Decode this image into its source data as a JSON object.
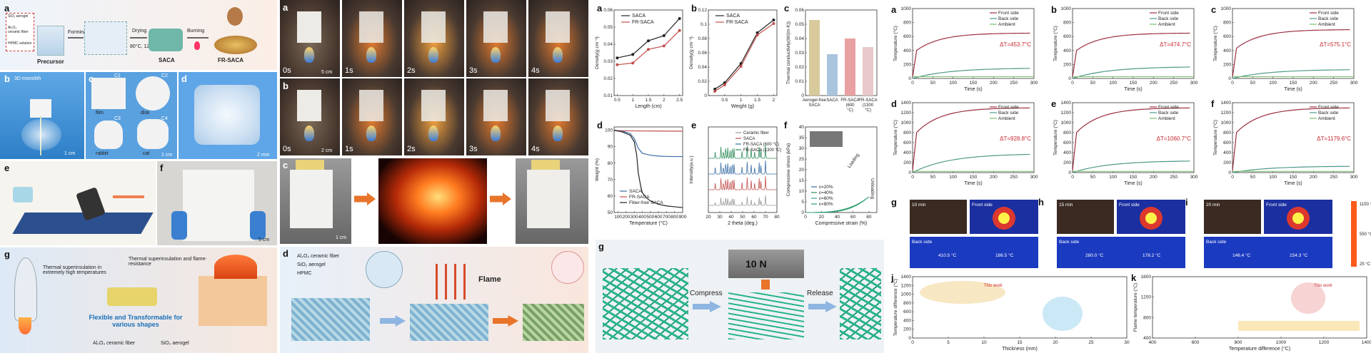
{
  "fig1": {
    "a": {
      "label": "a",
      "inset_lines": [
        "SiO₂ aerogel",
        "Al₂O₃",
        "ceramic fiber",
        "HPMC solution"
      ],
      "precursor": "Precursor",
      "forming": "Forming",
      "drying": "Drying",
      "dry_cond": "80°C, 12h",
      "burning": "Burning",
      "saca": "SACA",
      "frsaca": "FR-SACA"
    },
    "b": {
      "label": "b",
      "title": "3D monolith",
      "scale": "1 cm"
    },
    "c": {
      "label": "c",
      "items": [
        {
          "tag": "C1",
          "name": "film"
        },
        {
          "tag": "C2",
          "name": "disk"
        },
        {
          "tag": "C3",
          "name": "rabbit"
        },
        {
          "tag": "C4",
          "name": "cat"
        }
      ],
      "scale": "1 cm"
    },
    "d": {
      "label": "d",
      "scale": "2 mm"
    },
    "e": {
      "label": "e"
    },
    "f": {
      "label": "f",
      "scale": "5 cm"
    },
    "g": {
      "label": "g",
      "text1": "Thermal superinsulation in extremely high temperatures",
      "text2": "Thermal superinsulation and flame-resistance",
      "text3": "Flexible and Transformable for various shapes",
      "legend1": "Al₂O₃ ceramic fiber",
      "legend2": "SiO₂ aerogel"
    }
  },
  "fig2": {
    "a": {
      "label": "a",
      "times": [
        "0s",
        "1s",
        "2s",
        "3s",
        "4s"
      ],
      "scale": "5 cm"
    },
    "b": {
      "label": "b",
      "times": [
        "0s",
        "1s",
        "2s",
        "3s",
        "4s"
      ],
      "scale": "2 cm"
    },
    "c": {
      "label": "c",
      "scale": "1 cm"
    },
    "d": {
      "label": "d",
      "legend": [
        "Al₂O₃ ceramic fiber",
        "SiO₂ aerogel",
        "HPMC"
      ],
      "flame": "Flame"
    }
  },
  "fig3": {
    "a": {
      "label": "a"
    },
    "b": {
      "label": "b"
    },
    "c": {
      "label": "c"
    },
    "d": {
      "label": "d"
    },
    "e": {
      "label": "e"
    },
    "f": {
      "label": "f"
    },
    "g": {
      "label": "g",
      "compress": "Compress",
      "force": "10 N",
      "release": "Release"
    }
  },
  "fig4": {
    "labels": [
      "a",
      "b",
      "c",
      "d",
      "e",
      "f",
      "g",
      "h",
      "i",
      "j",
      "k"
    ],
    "dT": [
      "ΔT=453.7°C",
      "ΔT=474.7°C",
      "ΔT=575.1°C",
      "ΔT=928.8°C",
      "ΔT=1060.7°C",
      "ΔT=1179.6°C"
    ],
    "legend": [
      "Front side",
      "Back side",
      "Ambient"
    ],
    "xlabel": "Time (s)",
    "ylabel": "Temperature (°C)",
    "ir_times": [
      "10 min",
      "15 min",
      "20 min"
    ],
    "ir_front": "Front side",
    "ir_back": "Back side",
    "ir_back_vals": [
      "410.5 °C",
      "186.5 °C",
      "280.0 °C",
      "178.2 °C",
      "146.4 °C",
      "154.3 °C"
    ],
    "colorbar": [
      "1150 °C",
      "550 °C",
      "25 °C"
    ],
    "j_xlabel": "Thickness (mm)",
    "j_ylabel": "Temperature difference (°C)",
    "k_xlabel": "Temperature difference (°C)",
    "k_ylabel": "Flame temperature (°C)",
    "this_work": "This work"
  },
  "chart_data": [
    {
      "type": "line",
      "panel": "3a",
      "xlabel": "Length (cm)",
      "ylabel": "Density(g cm⁻³)",
      "xlim": [
        0.4,
        2.6
      ],
      "ylim": [
        0.01,
        0.06
      ],
      "xticks": [
        0.5,
        1.0,
        1.5,
        2.0,
        2.5
      ],
      "yticks": [
        0.01,
        0.02,
        0.03,
        0.04,
        0.05,
        0.06
      ],
      "series": [
        {
          "name": "SACA",
          "color": "#222222",
          "x": [
            0.5,
            1.0,
            1.5,
            2.0,
            2.5
          ],
          "y": [
            0.032,
            0.034,
            0.042,
            0.045,
            0.055
          ]
        },
        {
          "name": "FR-SACA",
          "color": "#c0504d",
          "x": [
            0.5,
            1.0,
            1.5,
            2.0,
            2.5
          ],
          "y": [
            0.028,
            0.029,
            0.037,
            0.039,
            0.048
          ]
        }
      ]
    },
    {
      "type": "line",
      "panel": "3b",
      "xlabel": "Weight (g)",
      "ylabel": "Density(g cm⁻³)",
      "xlim": [
        0,
        2.1
      ],
      "ylim": [
        0,
        0.12
      ],
      "xticks": [
        0.5,
        1.0,
        1.5,
        2.0
      ],
      "yticks": [
        0.0,
        0.02,
        0.04,
        0.06,
        0.08,
        0.1,
        0.12
      ],
      "series": [
        {
          "name": "SACA",
          "color": "#222222",
          "x": [
            0.2,
            0.5,
            1.0,
            1.5,
            2.0
          ],
          "y": [
            0.009,
            0.018,
            0.045,
            0.088,
            0.106
          ]
        },
        {
          "name": "FR-SACA",
          "color": "#c0504d",
          "x": [
            0.2,
            0.5,
            1.0,
            1.5,
            2.0
          ],
          "y": [
            0.006,
            0.015,
            0.041,
            0.085,
            0.101
          ]
        }
      ]
    },
    {
      "type": "bar",
      "panel": "3c",
      "ylabel": "Thermal conductivity(W/(m·K))",
      "categories": [
        "Aerogel-free SACA",
        "SACA",
        "FR-SACA (600 °C)",
        "FR-SACA (1300 °C)"
      ],
      "values": [
        0.053,
        0.029,
        0.04,
        0.034
      ],
      "colors": [
        "#d9ca9c",
        "#a9c4dd",
        "#e9a0a2",
        "#e8c8ca"
      ],
      "ylim": [
        0,
        0.06
      ],
      "yticks": [
        0.0,
        0.01,
        0.02,
        0.03,
        0.04,
        0.05,
        0.06
      ]
    },
    {
      "type": "line",
      "panel": "3d",
      "xlabel": "Temperature (°C)",
      "ylabel": "Weight (%)",
      "xlim": [
        50,
        900
      ],
      "ylim": [
        50,
        102
      ],
      "xticks": [
        100,
        200,
        300,
        400,
        500,
        600,
        700,
        800,
        900
      ],
      "yticks": [
        50,
        60,
        70,
        80,
        90,
        100
      ],
      "series": [
        {
          "name": "SACA",
          "color": "#3a6ea5",
          "x": [
            50,
            150,
            250,
            300,
            350,
            400,
            500,
            600,
            700,
            800,
            900
          ],
          "y": [
            100,
            99.5,
            98,
            95,
            89,
            86,
            84.8,
            84.3,
            84.1,
            84,
            84
          ]
        },
        {
          "name": "FR-SACA",
          "color": "#c0504d",
          "x": [
            50,
            300,
            600,
            900
          ],
          "y": [
            99.8,
            99.6,
            99.5,
            99.4
          ]
        },
        {
          "name": "Fiber-free SACA",
          "color": "#222222",
          "x": [
            50,
            150,
            250,
            300,
            330,
            350,
            380,
            400,
            450,
            500,
            600,
            700,
            800,
            900
          ],
          "y": [
            100,
            99,
            97,
            93,
            85,
            74,
            66,
            62,
            59,
            57,
            55,
            54,
            53.5,
            53
          ]
        }
      ]
    },
    {
      "type": "line",
      "panel": "3e",
      "xlabel": "2 theta (deg.)",
      "ylabel": "Intensity(a.u.)",
      "xlim": [
        20,
        80
      ],
      "xticks": [
        20,
        30,
        40,
        50,
        60,
        70,
        80
      ],
      "series": [
        {
          "name": "Ceramic fiber",
          "color": "#999999"
        },
        {
          "name": "SACA",
          "color": "#c0504d"
        },
        {
          "name": "FR-SACA (600 °C)",
          "color": "#3a6ea5"
        },
        {
          "name": "FR-SACA (1300 °C)",
          "color": "#2e8b57"
        }
      ],
      "peaks": [
        26,
        31,
        33.2,
        35.2,
        37,
        39,
        40.8,
        42.5,
        49.5,
        54,
        57.5,
        60.5,
        64.5,
        66,
        70
      ]
    },
    {
      "type": "line",
      "panel": "3f",
      "xlabel": "Compressive strain (%)",
      "ylabel": "Compressive stress (kPa)",
      "xlim": [
        0,
        90
      ],
      "ylim": [
        0,
        40
      ],
      "xticks": [
        0,
        20,
        40,
        60,
        80
      ],
      "yticks": [
        0,
        5,
        10,
        15,
        20,
        25,
        30,
        35,
        40
      ],
      "series": [
        {
          "name": "ε=20%",
          "color": "#3a6ea5",
          "max_strain": 20
        },
        {
          "name": "ε=40%",
          "color": "#2e8b57",
          "max_strain": 40
        },
        {
          "name": "ε=60%",
          "color": "#3aa090",
          "max_strain": 60
        },
        {
          "name": "ε=80%",
          "color": "#2f9e6f",
          "max_strain": 80
        }
      ],
      "annotations": [
        "Loading",
        "Unloading"
      ]
    },
    {
      "type": "line",
      "panel": "4a-f",
      "xlabel": "Time (s)",
      "ylabel": "Temperature (°C)",
      "panels": [
        {
          "label": "a",
          "front_max": 650,
          "back_max": 150,
          "ymax": 1000
        },
        {
          "label": "b",
          "front_max": 650,
          "back_max": 170,
          "ymax": 1000
        },
        {
          "label": "c",
          "front_max": 700,
          "back_max": 130,
          "ymax": 1000
        },
        {
          "label": "d",
          "front_max": 1300,
          "back_max": 380,
          "ymax": 1400
        },
        {
          "label": "e",
          "front_max": 1300,
          "back_max": 240,
          "ymax": 1400
        },
        {
          "label": "f",
          "front_max": 1300,
          "back_max": 130,
          "ymax": 1400
        }
      ]
    }
  ]
}
